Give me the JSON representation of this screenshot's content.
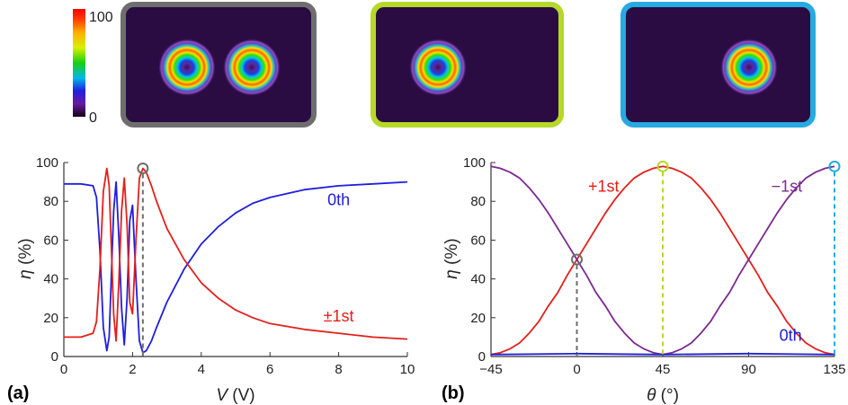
{
  "colorbar": {
    "max_label": "100",
    "min_label": "0"
  },
  "insets": [
    {
      "border_color": "#6e6e6e",
      "spots": 2
    },
    {
      "border_color": "#b5d829",
      "spots": 1
    },
    {
      "border_color": "#27a9e1",
      "spots": 1
    }
  ],
  "chart_data": [
    {
      "type": "line",
      "panel_label": "(a)",
      "xlabel_var": "V",
      "xlabel_unit": " (V)",
      "ylabel_var": "η",
      "ylabel_unit": " (%)",
      "xlim": [
        0,
        10
      ],
      "ylim": [
        0,
        100
      ],
      "xticks": [
        "0",
        "2",
        "4",
        "6",
        "8",
        "10"
      ],
      "yticks": [
        "0",
        "20",
        "40",
        "60",
        "80",
        "100"
      ],
      "marker": {
        "x": 2.3,
        "y": 97,
        "color": "#6e6e6e"
      },
      "series": [
        {
          "name": "0th",
          "color": "#1f1fdc",
          "x": [
            0,
            0.5,
            0.85,
            0.95,
            1.05,
            1.15,
            1.25,
            1.32,
            1.38,
            1.45,
            1.52,
            1.6,
            1.68,
            1.76,
            1.84,
            1.92,
            2.0,
            2.1,
            2.2,
            2.3,
            2.4,
            2.55,
            2.7,
            3.0,
            3.5,
            4.0,
            4.5,
            5.0,
            5.5,
            6.0,
            7.0,
            8.0,
            9.0,
            10.0
          ],
          "y": [
            89,
            89,
            88,
            82,
            55,
            15,
            3,
            10,
            40,
            75,
            90,
            62,
            25,
            6,
            30,
            70,
            78,
            40,
            8,
            2,
            3,
            8,
            15,
            28,
            45,
            58,
            67,
            74,
            79,
            82,
            86,
            88,
            89,
            90
          ]
        },
        {
          "name": "±1st",
          "color": "#e3201b",
          "x": [
            0,
            0.5,
            0.85,
            0.95,
            1.05,
            1.15,
            1.25,
            1.32,
            1.38,
            1.45,
            1.52,
            1.6,
            1.68,
            1.76,
            1.84,
            1.92,
            2.0,
            2.1,
            2.2,
            2.3,
            2.4,
            2.55,
            2.7,
            3.0,
            3.5,
            4.0,
            4.5,
            5.0,
            5.5,
            6.0,
            7.0,
            8.0,
            9.0,
            10.0
          ],
          "y": [
            10,
            10,
            12,
            18,
            45,
            85,
            97,
            88,
            58,
            22,
            8,
            38,
            75,
            92,
            68,
            28,
            22,
            60,
            92,
            97,
            95,
            88,
            80,
            66,
            50,
            38,
            30,
            24,
            20,
            17,
            14,
            12,
            10,
            9
          ]
        }
      ],
      "annotations": [
        {
          "text": "0th",
          "x": 8.0,
          "y": 78,
          "color": "#1f1fdc"
        },
        {
          "text": "±1st",
          "x": 8.0,
          "y": 18,
          "color": "#e3201b"
        }
      ]
    },
    {
      "type": "line",
      "panel_label": "(b)",
      "xlabel_var": "θ",
      "xlabel_unit": " (°)",
      "ylabel_var": "η",
      "ylabel_unit": " (%)",
      "xlim": [
        -45,
        135
      ],
      "ylim": [
        0,
        100
      ],
      "xticks": [
        "−45",
        "0",
        "45",
        "90",
        "135"
      ],
      "yticks": [
        "0",
        "20",
        "40",
        "60",
        "80",
        "100"
      ],
      "markers": [
        {
          "x": 0,
          "y": 50,
          "color": "#6e6e6e"
        },
        {
          "x": 45,
          "y": 98,
          "color": "#b5d829"
        },
        {
          "x": 135,
          "y": 98,
          "color": "#27a9e1"
        }
      ],
      "series": [
        {
          "name": "+1st",
          "color": "#e3201b",
          "x": [
            -45,
            -40,
            -35,
            -30,
            -25,
            -20,
            -15,
            -10,
            -5,
            0,
            5,
            10,
            15,
            20,
            25,
            30,
            35,
            40,
            45,
            50,
            55,
            60,
            65,
            70,
            75,
            80,
            85,
            90,
            95,
            100,
            105,
            110,
            115,
            120,
            125,
            130,
            135
          ],
          "y": [
            1,
            2,
            4,
            7,
            12,
            18,
            26,
            33,
            42,
            50,
            58,
            66,
            74,
            81,
            87,
            92,
            95,
            97,
            98,
            97,
            95,
            92,
            87,
            81,
            74,
            66,
            58,
            50,
            42,
            33,
            26,
            18,
            12,
            7,
            4,
            2,
            1
          ]
        },
        {
          "name": "−1st",
          "color": "#7b2a8f",
          "x": [
            -45,
            -40,
            -35,
            -30,
            -25,
            -20,
            -15,
            -10,
            -5,
            0,
            5,
            10,
            15,
            20,
            25,
            30,
            35,
            40,
            45,
            50,
            55,
            60,
            65,
            70,
            75,
            80,
            85,
            90,
            95,
            100,
            105,
            110,
            115,
            120,
            125,
            130,
            135
          ],
          "y": [
            98,
            97,
            95,
            92,
            87,
            81,
            74,
            66,
            58,
            50,
            42,
            33,
            26,
            18,
            12,
            7,
            4,
            2,
            1,
            2,
            4,
            7,
            12,
            18,
            26,
            33,
            42,
            50,
            58,
            66,
            74,
            81,
            87,
            92,
            95,
            97,
            98
          ]
        },
        {
          "name": "0th",
          "color": "#1f1fdc",
          "x": [
            -45,
            0,
            45,
            90,
            135
          ],
          "y": [
            1,
            1.5,
            1,
            1.5,
            1
          ]
        }
      ],
      "annotations": [
        {
          "text": "+1st",
          "x": 14,
          "y": 85,
          "color": "#e3201b"
        },
        {
          "text": "−1st",
          "x": 110,
          "y": 85,
          "color": "#7b2a8f"
        },
        {
          "text": "0th",
          "x": 112,
          "y": 8,
          "color": "#1f1fdc"
        }
      ]
    }
  ]
}
